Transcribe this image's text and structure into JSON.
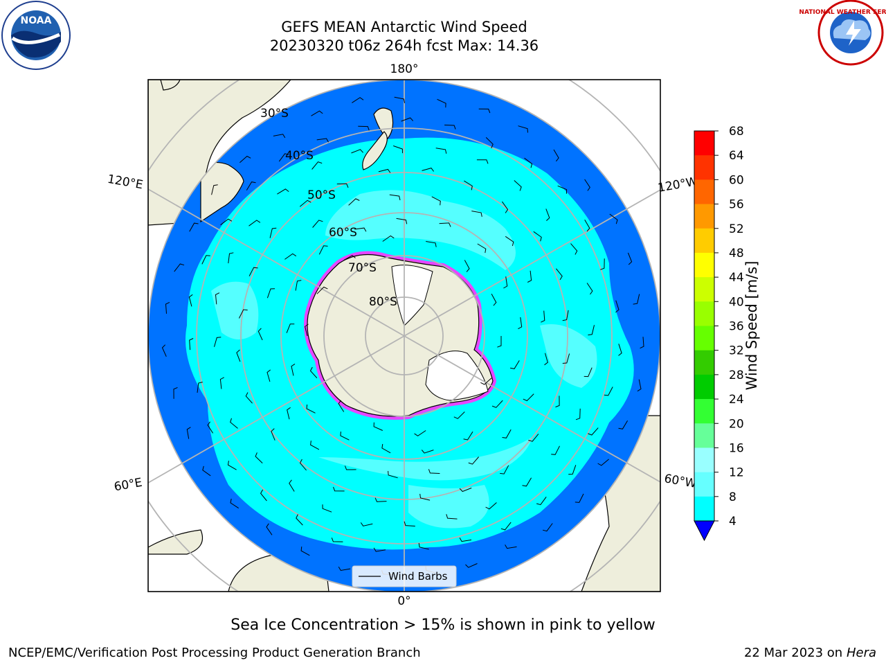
{
  "title": {
    "line1": "GEFS MEAN Antarctic Wind Speed",
    "line2": "20230320 t06z 264h fcst   Max: 14.36"
  },
  "logos": {
    "left": {
      "name": "NOAA",
      "text": "NOAA"
    },
    "right": {
      "name": "National Weather Service",
      "text": "NATIONAL WEATHER SERVICE"
    }
  },
  "map": {
    "projection": "south-polar-stereographic",
    "longitude_labels": [
      "180°",
      "120°E",
      "120°W",
      "60°E",
      "60°W",
      "0°"
    ],
    "latitude_labels": [
      "30°S",
      "40°S",
      "50°S",
      "60°S",
      "70°S",
      "80°S"
    ],
    "legend_label": "Wind Barbs",
    "colors": {
      "land": "#eeeedc",
      "ice": "#ffffff",
      "ice_edge": "#ff33ff",
      "bg_wind": "#0073ff",
      "wind_cyan": "#00ffff",
      "wind_light": "#55ffff",
      "grid": "#b4b4b4"
    }
  },
  "colorbar": {
    "label": "Wind Speed [m/s]",
    "ticks": [
      "68",
      "64",
      "60",
      "56",
      "52",
      "48",
      "44",
      "40",
      "36",
      "32",
      "28",
      "24",
      "20",
      "16",
      "12",
      "8",
      "4"
    ],
    "colors": [
      "#ff0000",
      "#ff3300",
      "#ff6600",
      "#ff9900",
      "#ffcc00",
      "#ffff00",
      "#ccff00",
      "#99ff00",
      "#66ff00",
      "#33cc00",
      "#00cc00",
      "#33ff33",
      "#66ff99",
      "#99ffff",
      "#66ffff",
      "#00ffff",
      "#0073ff"
    ],
    "extend_color": "#0000ff"
  },
  "footer": {
    "note": "Sea Ice Concentration > 15% is shown in pink to yellow",
    "credit": "NCEP/EMC/Verification Post Processing Product Generation Branch",
    "date": "22 Mar 2023 on",
    "machine": "Hera"
  }
}
